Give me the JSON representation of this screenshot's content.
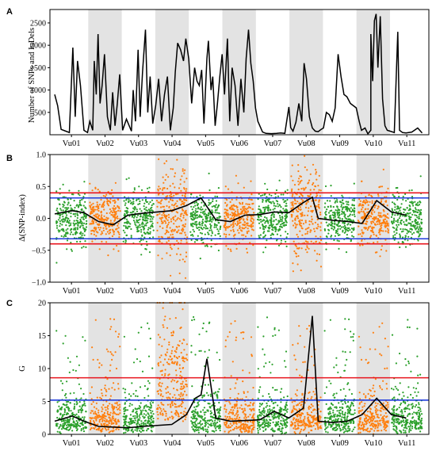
{
  "figure": {
    "panel_letters": [
      "A",
      "B",
      "C"
    ]
  },
  "chromosomes": [
    "Vu01",
    "Vu02",
    "Vu03",
    "Vu04",
    "Vu05",
    "Vu06",
    "Vu07",
    "Vu08",
    "Vu09",
    "Vu10",
    "Vu11"
  ],
  "colors": {
    "shade": "#e3e3e3",
    "green": "#2ca02c",
    "orange": "#ff7f0e",
    "red": "#e8141e",
    "blue": "#1f3bdc",
    "line": "#000000"
  },
  "chart_data": [
    {
      "panel": "A",
      "type": "line",
      "ylabel": "Number of SNPs and InDels",
      "xlabel": "",
      "ylim": [
        0,
        2800
      ],
      "yticks": [
        "500",
        "1000",
        "1500",
        "2000",
        "2500"
      ],
      "x_categories": [
        "Vu01",
        "Vu02",
        "Vu03",
        "Vu04",
        "Vu05",
        "Vu06",
        "Vu07",
        "Vu08",
        "Vu09",
        "Vu10",
        "Vu11"
      ],
      "shaded_chromosomes": [
        "Vu02",
        "Vu04",
        "Vu06",
        "Vu08",
        "Vu10"
      ],
      "series": [
        {
          "values": [
            [
              0.0,
              900
            ],
            [
              0.01,
              650
            ],
            [
              0.022,
              120
            ],
            [
              0.038,
              80
            ],
            [
              0.05,
              50
            ],
            [
              0.062,
              1950
            ],
            [
              0.07,
              400
            ],
            [
              0.078,
              1650
            ],
            [
              0.088,
              1100
            ],
            [
              0.1,
              100
            ],
            [
              0.112,
              50
            ],
            [
              0.12,
              300
            ],
            [
              0.13,
              100
            ],
            [
              0.135,
              1650
            ],
            [
              0.142,
              900
            ],
            [
              0.148,
              2250
            ],
            [
              0.155,
              700
            ],
            [
              0.162,
              1100
            ],
            [
              0.17,
              1800
            ],
            [
              0.18,
              400
            ],
            [
              0.19,
              100
            ],
            [
              0.198,
              950
            ],
            [
              0.206,
              200
            ],
            [
              0.214,
              700
            ],
            [
              0.222,
              1350
            ],
            [
              0.232,
              100
            ],
            [
              0.245,
              350
            ],
            [
              0.262,
              80
            ],
            [
              0.268,
              1000
            ],
            [
              0.276,
              300
            ],
            [
              0.285,
              1900
            ],
            [
              0.292,
              400
            ],
            [
              0.3,
              1400
            ],
            [
              0.31,
              2350
            ],
            [
              0.318,
              500
            ],
            [
              0.326,
              1300
            ],
            [
              0.335,
              250
            ],
            [
              0.345,
              650
            ],
            [
              0.355,
              1250
            ],
            [
              0.365,
              300
            ],
            [
              0.375,
              900
            ],
            [
              0.385,
              1300
            ],
            [
              0.395,
              100
            ],
            [
              0.405,
              600
            ],
            [
              0.412,
              1400
            ],
            [
              0.42,
              2050
            ],
            [
              0.43,
              1900
            ],
            [
              0.44,
              1650
            ],
            [
              0.448,
              2150
            ],
            [
              0.458,
              1700
            ],
            [
              0.468,
              700
            ],
            [
              0.478,
              1500
            ],
            [
              0.486,
              1200
            ],
            [
              0.494,
              1100
            ],
            [
              0.502,
              1450
            ],
            [
              0.51,
              250
            ],
            [
              0.52,
              1700
            ],
            [
              0.525,
              2100
            ],
            [
              0.534,
              1000
            ],
            [
              0.54,
              1300
            ],
            [
              0.548,
              200
            ],
            [
              0.556,
              700
            ],
            [
              0.564,
              1300
            ],
            [
              0.572,
              1800
            ],
            [
              0.58,
              900
            ],
            [
              0.59,
              2150
            ],
            [
              0.598,
              300
            ],
            [
              0.606,
              1500
            ],
            [
              0.616,
              1100
            ],
            [
              0.626,
              200
            ],
            [
              0.636,
              1250
            ],
            [
              0.646,
              500
            ],
            [
              0.654,
              1700
            ],
            [
              0.662,
              2350
            ],
            [
              0.67,
              1600
            ],
            [
              0.678,
              1200
            ],
            [
              0.686,
              600
            ],
            [
              0.694,
              300
            ],
            [
              0.71,
              60
            ],
            [
              0.722,
              30
            ],
            [
              0.74,
              25
            ],
            [
              0.758,
              30
            ],
            [
              0.772,
              40
            ],
            [
              0.786,
              30
            ],
            [
              0.8,
              620
            ],
            [
              0.806,
              160
            ],
            [
              0.814,
              80
            ],
            [
              0.824,
              280
            ],
            [
              0.834,
              700
            ],
            [
              0.844,
              300
            ],
            [
              0.852,
              1600
            ],
            [
              0.86,
              1250
            ],
            [
              0.87,
              400
            ],
            [
              0.88,
              150
            ],
            [
              0.89,
              80
            ],
            [
              0.9,
              70
            ],
            [
              0.91,
              120
            ],
            [
              0.918,
              150
            ],
            [
              0.928,
              500
            ],
            [
              0.938,
              450
            ],
            [
              0.948,
              300
            ],
            [
              0.958,
              600
            ],
            [
              0.968,
              1800
            ],
            [
              0.978,
              1300
            ],
            [
              0.988,
              900
            ],
            [
              0.998,
              850
            ],
            [
              1.01,
              700
            ],
            [
              1.03,
              600
            ],
            [
              1.04,
              300
            ],
            [
              1.048,
              100
            ],
            [
              1.06,
              150
            ],
            [
              1.07,
              20
            ],
            [
              1.08,
              100
            ],
            [
              1.08,
              2250
            ],
            [
              1.086,
              1200
            ],
            [
              1.092,
              2550
            ],
            [
              1.098,
              2700
            ],
            [
              1.104,
              1500
            ],
            [
              1.112,
              2650
            ],
            [
              1.12,
              800
            ],
            [
              1.128,
              200
            ],
            [
              1.136,
              100
            ],
            [
              1.146,
              80
            ],
            [
              1.16,
              50
            ],
            [
              1.172,
              2300
            ],
            [
              1.178,
              100
            ],
            [
              1.188,
              50
            ],
            [
              1.2,
              40
            ],
            [
              1.22,
              60
            ],
            [
              1.24,
              150
            ],
            [
              1.255,
              40
            ]
          ]
        }
      ]
    },
    {
      "panel": "B",
      "type": "scatter",
      "ylabel": "Δ(SNP-index)",
      "xlabel": "",
      "ylim": [
        -1.0,
        1.0
      ],
      "yticks": [
        "1.0",
        "0.5",
        "0.0",
        "−0.5",
        "−1.0"
      ],
      "x_categories": [
        "Vu01",
        "Vu02",
        "Vu03",
        "Vu04",
        "Vu05",
        "Vu06",
        "Vu07",
        "Vu08",
        "Vu09",
        "Vu10",
        "Vu11"
      ],
      "shaded_chromosomes": [
        "Vu02",
        "Vu04",
        "Vu06",
        "Vu08",
        "Vu10"
      ],
      "point_colors": [
        "green",
        "orange",
        "green",
        "orange",
        "green",
        "orange",
        "green",
        "orange",
        "green",
        "orange",
        "green"
      ],
      "series": [
        {
          "name": "",
          "values": "points ~N(0, 0.2) per chromosome"
        },
        {
          "name": "",
          "values": [
            [
              0.0,
              0.07
            ],
            [
              0.06,
              0.12
            ],
            [
              0.1,
              0.09
            ],
            [
              0.15,
              -0.05
            ],
            [
              0.2,
              -0.1
            ],
            [
              0.25,
              0.05
            ],
            [
              0.3,
              0.08
            ],
            [
              0.35,
              0.1
            ],
            [
              0.4,
              0.12
            ],
            [
              0.45,
              0.2
            ],
            [
              0.5,
              0.32
            ],
            [
              0.55,
              -0.02
            ],
            [
              0.6,
              -0.05
            ],
            [
              0.65,
              0.05
            ],
            [
              0.7,
              0.06
            ],
            [
              0.75,
              0.1
            ],
            [
              0.8,
              0.09
            ],
            [
              0.85,
              0.25
            ],
            [
              0.88,
              0.33
            ],
            [
              0.9,
              0.0
            ],
            [
              0.95,
              -0.03
            ],
            [
              1.0,
              -0.05
            ],
            [
              1.05,
              -0.08
            ],
            [
              1.1,
              0.28
            ],
            [
              1.15,
              0.1
            ],
            [
              1.2,
              0.05
            ]
          ]
        }
      ],
      "thresholds": {
        "red_upper": 0.4,
        "red_lower": -0.4,
        "blue_upper": 0.32,
        "blue_lower": -0.32
      }
    },
    {
      "panel": "C",
      "type": "scatter",
      "ylabel": "G",
      "xlabel": "",
      "ylim": [
        0,
        20
      ],
      "yticks": [
        "0",
        "5",
        "10",
        "15",
        "20"
      ],
      "x_categories": [
        "Vu01",
        "Vu02",
        "Vu03",
        "Vu04",
        "Vu05",
        "Vu06",
        "Vu07",
        "Vu08",
        "Vu09",
        "Vu10",
        "Vu11"
      ],
      "shaded_chromosomes": [
        "Vu02",
        "Vu04",
        "Vu06",
        "Vu08",
        "Vu10"
      ],
      "point_colors": [
        "green",
        "orange",
        "green",
        "orange",
        "green",
        "orange",
        "green",
        "orange",
        "green",
        "orange",
        "green"
      ],
      "series": [
        {
          "name": "",
          "values": "points skewed, mostly 0–10"
        },
        {
          "name": "",
          "values": [
            [
              0.0,
              2.0
            ],
            [
              0.06,
              2.8
            ],
            [
              0.1,
              2.0
            ],
            [
              0.15,
              1.2
            ],
            [
              0.25,
              1.0
            ],
            [
              0.3,
              1.2
            ],
            [
              0.4,
              1.5
            ],
            [
              0.45,
              3.0
            ],
            [
              0.48,
              5.5
            ],
            [
              0.5,
              6.0
            ],
            [
              0.52,
              11.5
            ],
            [
              0.55,
              2.5
            ],
            [
              0.6,
              2.0
            ],
            [
              0.7,
              2.2
            ],
            [
              0.75,
              3.5
            ],
            [
              0.8,
              2.5
            ],
            [
              0.85,
              4.0
            ],
            [
              0.88,
              18.0
            ],
            [
              0.9,
              2.0
            ],
            [
              0.95,
              1.8
            ],
            [
              1.0,
              2.0
            ],
            [
              1.05,
              3.0
            ],
            [
              1.1,
              5.5
            ],
            [
              1.15,
              3.0
            ],
            [
              1.2,
              2.5
            ]
          ]
        }
      ],
      "thresholds": {
        "red": 8.6,
        "blue": 5.2
      }
    }
  ]
}
